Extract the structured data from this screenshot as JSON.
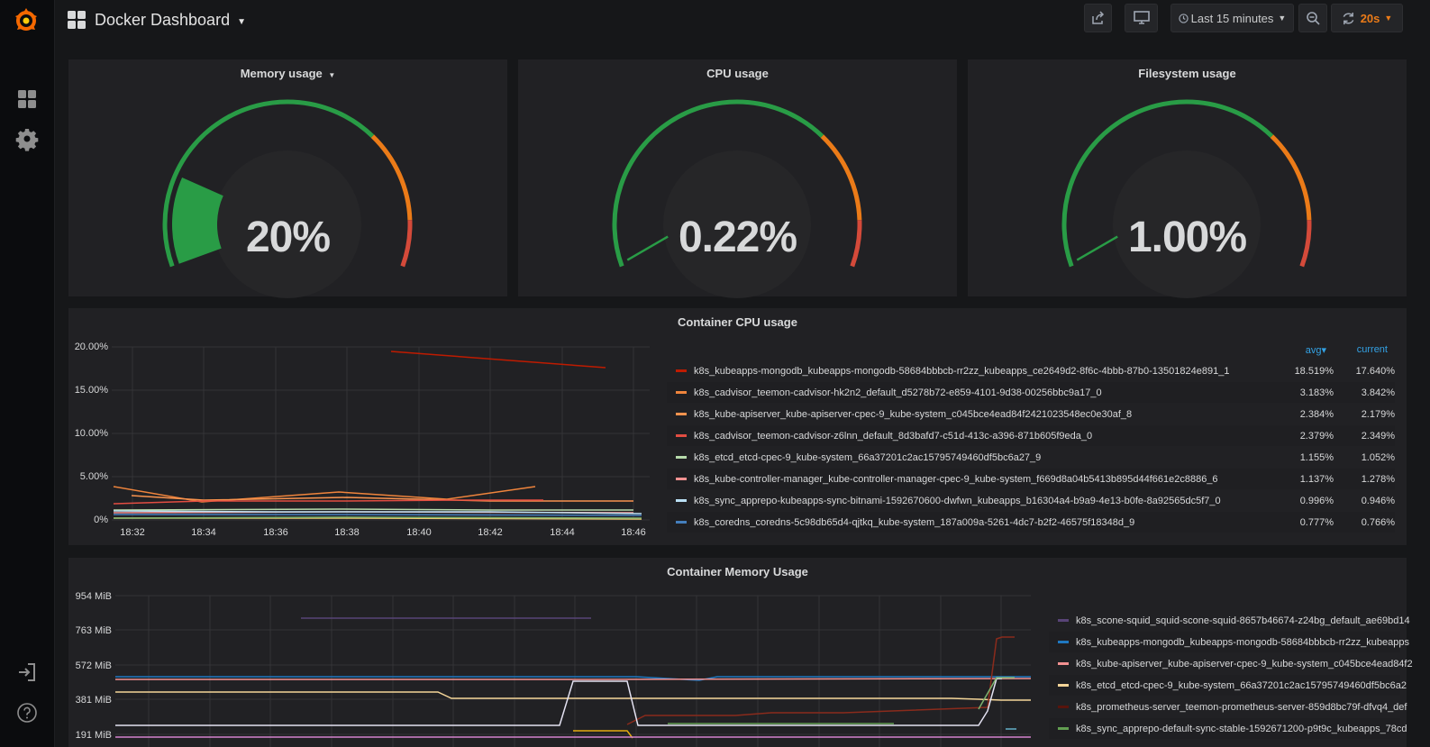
{
  "navbar": {
    "dashboard_title": "Docker Dashboard",
    "time_range_label": "Last 15 minutes",
    "refresh_interval": "20s"
  },
  "colors": {
    "green": "#299c46",
    "orange": "#eb7b18",
    "red": "#d44a3a",
    "accent_blue": "#33a2e5"
  },
  "gauges": [
    {
      "title": "Memory usage",
      "value": "20%",
      "fraction": 0.2
    },
    {
      "title": "CPU usage",
      "value": "0.22%",
      "fraction": 0.0022
    },
    {
      "title": "Filesystem usage",
      "value": "1.00%",
      "fraction": 0.01
    }
  ],
  "cpu_panel": {
    "title": "Container CPU usage",
    "y_ticks": [
      "20.00%",
      "15.00%",
      "10.00%",
      "5.00%",
      "0%"
    ],
    "x_ticks": [
      "18:32",
      "18:34",
      "18:36",
      "18:38",
      "18:40",
      "18:42",
      "18:44",
      "18:46"
    ],
    "legend_avg_header": "avg",
    "legend_current_header": "current",
    "legend": [
      {
        "name": "k8s_kubeapps-mongodb_kubeapps-mongodb-58684bbbcb-rr2zz_kubeapps_ce2649d2-8f6c-4bbb-87b0-13501824e891_1",
        "avg": "18.519%",
        "current": "17.640%",
        "color": "#bf1b00"
      },
      {
        "name": "k8s_cadvisor_teemon-cadvisor-hk2n2_default_d5278b72-e859-4101-9d38-00256bbc9a17_0",
        "avg": "3.183%",
        "current": "3.842%",
        "color": "#ef843c"
      },
      {
        "name": "k8s_kube-apiserver_kube-apiserver-cpec-9_kube-system_c045bce4ead84f2421023548ec0e30af_8",
        "avg": "2.384%",
        "current": "2.179%",
        "color": "#f9934e"
      },
      {
        "name": "k8s_cadvisor_teemon-cadvisor-z6lnn_default_8d3bafd7-c51d-413c-a396-871b605f9eda_0",
        "avg": "2.379%",
        "current": "2.349%",
        "color": "#e24d42"
      },
      {
        "name": "k8s_etcd_etcd-cpec-9_kube-system_66a37201c2ac15795749460df5bc6a27_9",
        "avg": "1.155%",
        "current": "1.052%",
        "color": "#b7dbab"
      },
      {
        "name": "k8s_kube-controller-manager_kube-controller-manager-cpec-9_kube-system_f669d8a04b5413b895d44f661e2c8886_6",
        "avg": "1.137%",
        "current": "1.278%",
        "color": "#f29191"
      },
      {
        "name": "k8s_sync_apprepo-kubeapps-sync-bitnami-1592670600-dwfwn_kubeapps_b16304a4-b9a9-4e13-b0fe-8a92565dc5f7_0",
        "avg": "0.996%",
        "current": "0.946%",
        "color": "#badff4"
      },
      {
        "name": "k8s_coredns_coredns-5c98db65d4-qjtkq_kube-system_187a009a-5261-4dc7-b2f2-46575f18348d_9",
        "avg": "0.777%",
        "current": "0.766%",
        "color": "#447ebc"
      }
    ]
  },
  "mem_panel": {
    "title": "Container Memory Usage",
    "y_ticks": [
      "954 MiB",
      "763 MiB",
      "572 MiB",
      "381 MiB",
      "191 MiB"
    ],
    "legend": [
      {
        "name": "k8s_scone-squid_squid-scone-squid-8657b46674-z24bg_default_ae69bd14",
        "color": "#584477"
      },
      {
        "name": "k8s_kubeapps-mongodb_kubeapps-mongodb-58684bbbcb-rr2zz_kubeapps",
        "color": "#1f78c1"
      },
      {
        "name": "k8s_kube-apiserver_kube-apiserver-cpec-9_kube-system_c045bce4ead84f2",
        "color": "#f29191"
      },
      {
        "name": "k8s_etcd_etcd-cpec-9_kube-system_66a37201c2ac15795749460df5bc6a2",
        "color": "#f4d598"
      },
      {
        "name": "k8s_prometheus-server_teemon-prometheus-server-859d8bc79f-dfvq4_def",
        "color": "#58140c"
      },
      {
        "name": "k8s_sync_apprepo-default-sync-stable-1592671200-p9t9c_kubeapps_78cd",
        "color": "#629e51"
      }
    ]
  }
}
